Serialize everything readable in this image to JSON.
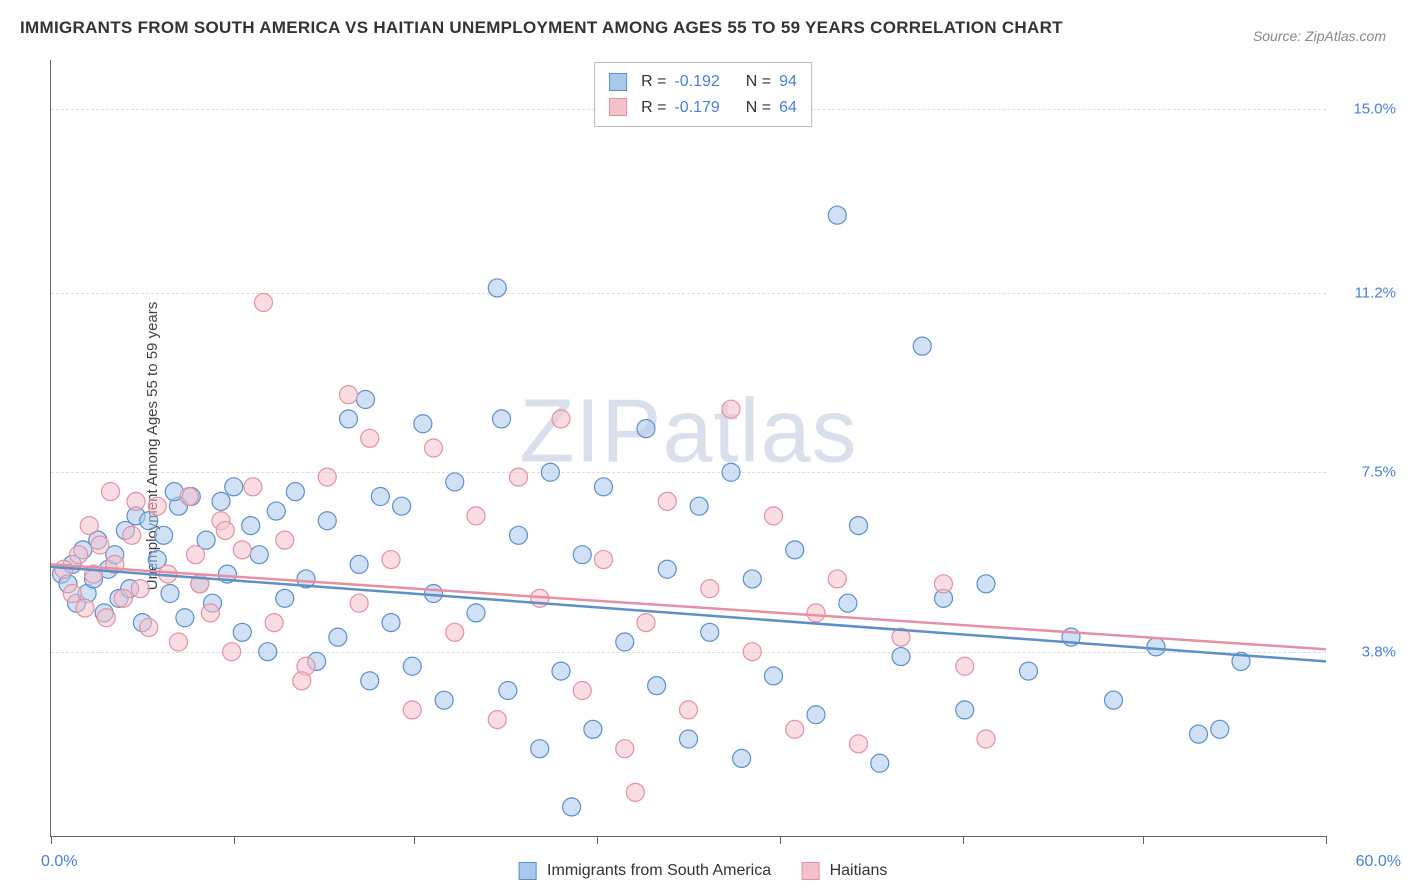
{
  "title": "IMMIGRANTS FROM SOUTH AMERICA VS HAITIAN UNEMPLOYMENT AMONG AGES 55 TO 59 YEARS CORRELATION CHART",
  "source": "Source: ZipAtlas.com",
  "watermark": "ZIPatlas",
  "chart": {
    "type": "scatter",
    "y_axis_label": "Unemployment Among Ages 55 to 59 years",
    "xlim": [
      0,
      60
    ],
    "ylim": [
      0,
      16
    ],
    "x_min_label": "0.0%",
    "x_max_label": "60.0%",
    "y_tick_labels": [
      "3.8%",
      "7.5%",
      "11.2%",
      "15.0%"
    ],
    "y_tick_values": [
      3.8,
      7.5,
      11.2,
      15.0
    ],
    "x_tick_positions": [
      0,
      8.6,
      17.1,
      25.7,
      34.3,
      42.9,
      51.4,
      60
    ],
    "grid_color": "#dddddd",
    "background_color": "#ffffff",
    "marker_radius": 9,
    "marker_opacity": 0.55,
    "marker_stroke_width": 1.2,
    "series": [
      {
        "name": "Immigrants from South America",
        "fill": "#a9c8ed",
        "stroke": "#5e8fc9",
        "trend_y0": 5.55,
        "trend_y1": 3.6,
        "R": "-0.192",
        "N": "94",
        "points": [
          [
            0.5,
            5.4
          ],
          [
            0.8,
            5.2
          ],
          [
            1.0,
            5.6
          ],
          [
            1.2,
            4.8
          ],
          [
            1.5,
            5.9
          ],
          [
            1.7,
            5.0
          ],
          [
            2.0,
            5.3
          ],
          [
            2.2,
            6.1
          ],
          [
            2.5,
            4.6
          ],
          [
            2.7,
            5.5
          ],
          [
            3.0,
            5.8
          ],
          [
            3.2,
            4.9
          ],
          [
            3.5,
            6.3
          ],
          [
            3.7,
            5.1
          ],
          [
            4.0,
            6.6
          ],
          [
            4.3,
            4.4
          ],
          [
            4.6,
            6.5
          ],
          [
            5.0,
            5.7
          ],
          [
            5.3,
            6.2
          ],
          [
            5.6,
            5.0
          ],
          [
            6.0,
            6.8
          ],
          [
            6.3,
            4.5
          ],
          [
            6.6,
            7.0
          ],
          [
            7.0,
            5.2
          ],
          [
            7.3,
            6.1
          ],
          [
            7.6,
            4.8
          ],
          [
            8.0,
            6.9
          ],
          [
            8.3,
            5.4
          ],
          [
            8.6,
            7.2
          ],
          [
            9.0,
            4.2
          ],
          [
            9.4,
            6.4
          ],
          [
            9.8,
            5.8
          ],
          [
            10.2,
            3.8
          ],
          [
            10.6,
            6.7
          ],
          [
            11.0,
            4.9
          ],
          [
            11.5,
            7.1
          ],
          [
            12.0,
            5.3
          ],
          [
            12.5,
            3.6
          ],
          [
            13.0,
            6.5
          ],
          [
            13.5,
            4.1
          ],
          [
            14.0,
            8.6
          ],
          [
            14.5,
            5.6
          ],
          [
            15.0,
            3.2
          ],
          [
            15.5,
            7.0
          ],
          [
            16.0,
            4.4
          ],
          [
            16.5,
            6.8
          ],
          [
            17.0,
            3.5
          ],
          [
            17.5,
            8.5
          ],
          [
            18.0,
            5.0
          ],
          [
            18.5,
            2.8
          ],
          [
            19.0,
            7.3
          ],
          [
            20.0,
            4.6
          ],
          [
            21.0,
            11.3
          ],
          [
            21.2,
            8.6
          ],
          [
            21.5,
            3.0
          ],
          [
            22.0,
            6.2
          ],
          [
            23.0,
            1.8
          ],
          [
            23.5,
            7.5
          ],
          [
            24.0,
            3.4
          ],
          [
            25.0,
            5.8
          ],
          [
            25.5,
            2.2
          ],
          [
            26.0,
            7.2
          ],
          [
            27.0,
            4.0
          ],
          [
            28.0,
            8.4
          ],
          [
            28.5,
            3.1
          ],
          [
            29.0,
            5.5
          ],
          [
            30.0,
            2.0
          ],
          [
            30.5,
            6.8
          ],
          [
            31.0,
            4.2
          ],
          [
            32.0,
            7.5
          ],
          [
            32.5,
            1.6
          ],
          [
            33.0,
            5.3
          ],
          [
            34.0,
            3.3
          ],
          [
            35.0,
            5.9
          ],
          [
            36.0,
            2.5
          ],
          [
            37.0,
            12.8
          ],
          [
            37.5,
            4.8
          ],
          [
            38.0,
            6.4
          ],
          [
            39.0,
            1.5
          ],
          [
            40.0,
            3.7
          ],
          [
            41.0,
            10.1
          ],
          [
            42.0,
            4.9
          ],
          [
            43.0,
            2.6
          ],
          [
            44.0,
            5.2
          ],
          [
            46.0,
            3.4
          ],
          [
            48.0,
            4.1
          ],
          [
            50.0,
            2.8
          ],
          [
            52.0,
            3.9
          ],
          [
            54.0,
            2.1
          ],
          [
            55.0,
            2.2
          ],
          [
            56.0,
            3.6
          ],
          [
            24.5,
            0.6
          ],
          [
            14.8,
            9.0
          ],
          [
            5.8,
            7.1
          ]
        ]
      },
      {
        "name": "Haitians",
        "fill": "#f4c1cb",
        "stroke": "#e590a3",
        "trend_y0": 5.6,
        "trend_y1": 3.85,
        "R": "-0.179",
        "N": "64",
        "points": [
          [
            0.6,
            5.5
          ],
          [
            1.0,
            5.0
          ],
          [
            1.3,
            5.8
          ],
          [
            1.6,
            4.7
          ],
          [
            2.0,
            5.4
          ],
          [
            2.3,
            6.0
          ],
          [
            2.6,
            4.5
          ],
          [
            3.0,
            5.6
          ],
          [
            3.4,
            4.9
          ],
          [
            3.8,
            6.2
          ],
          [
            4.2,
            5.1
          ],
          [
            4.6,
            4.3
          ],
          [
            5.0,
            6.8
          ],
          [
            5.5,
            5.4
          ],
          [
            6.0,
            4.0
          ],
          [
            6.5,
            7.0
          ],
          [
            7.0,
            5.2
          ],
          [
            7.5,
            4.6
          ],
          [
            8.0,
            6.5
          ],
          [
            8.5,
            3.8
          ],
          [
            9.0,
            5.9
          ],
          [
            9.5,
            7.2
          ],
          [
            10.0,
            11.0
          ],
          [
            10.5,
            4.4
          ],
          [
            11.0,
            6.1
          ],
          [
            12.0,
            3.5
          ],
          [
            13.0,
            7.4
          ],
          [
            14.0,
            9.1
          ],
          [
            14.5,
            4.8
          ],
          [
            15.0,
            8.2
          ],
          [
            16.0,
            5.7
          ],
          [
            17.0,
            2.6
          ],
          [
            18.0,
            8.0
          ],
          [
            19.0,
            4.2
          ],
          [
            20.0,
            6.6
          ],
          [
            21.0,
            2.4
          ],
          [
            22.0,
            7.4
          ],
          [
            23.0,
            4.9
          ],
          [
            24.0,
            8.6
          ],
          [
            25.0,
            3.0
          ],
          [
            26.0,
            5.7
          ],
          [
            27.0,
            1.8
          ],
          [
            28.0,
            4.4
          ],
          [
            29.0,
            6.9
          ],
          [
            30.0,
            2.6
          ],
          [
            31.0,
            5.1
          ],
          [
            32.0,
            8.8
          ],
          [
            33.0,
            3.8
          ],
          [
            34.0,
            6.6
          ],
          [
            35.0,
            2.2
          ],
          [
            36.0,
            4.6
          ],
          [
            37.0,
            5.3
          ],
          [
            38.0,
            1.9
          ],
          [
            40.0,
            4.1
          ],
          [
            42.0,
            5.2
          ],
          [
            43.0,
            3.5
          ],
          [
            44.0,
            2.0
          ],
          [
            27.5,
            0.9
          ],
          [
            8.2,
            6.3
          ],
          [
            6.8,
            5.8
          ],
          [
            4.0,
            6.9
          ],
          [
            2.8,
            7.1
          ],
          [
            1.8,
            6.4
          ],
          [
            11.8,
            3.2
          ]
        ]
      }
    ]
  },
  "bottom_legend": {
    "series1_label": "Immigrants from South America",
    "series2_label": "Haitians"
  },
  "stats_box": {
    "r_label": "R =",
    "n_label": "N ="
  }
}
